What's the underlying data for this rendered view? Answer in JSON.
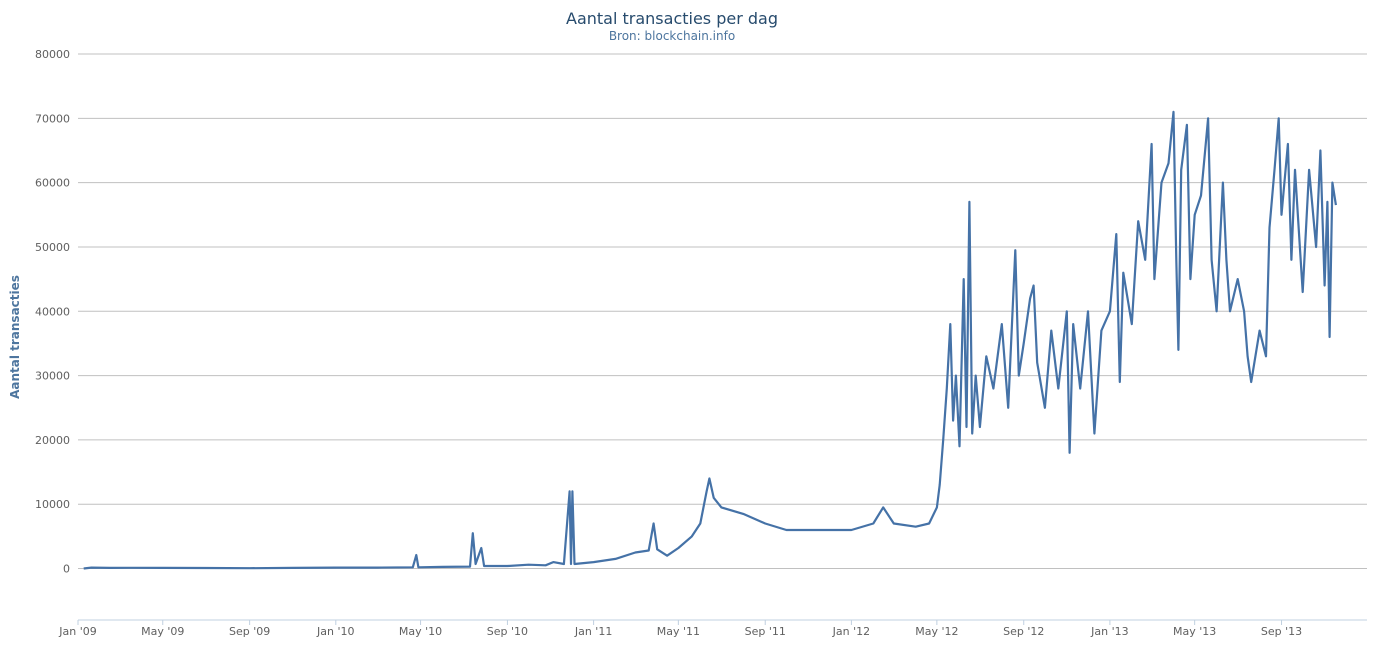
{
  "chart_data": {
    "type": "line",
    "title": "Aantal transacties per dag",
    "subtitle": "Bron: blockchain.info",
    "xlabel": "",
    "ylabel": "Aantal transacties",
    "ylim": [
      -8000,
      80000
    ],
    "yticks": [
      0,
      10000,
      20000,
      30000,
      40000,
      50000,
      60000,
      70000,
      80000
    ],
    "xlim": [
      "2009-01-01",
      "2013-12-31"
    ],
    "xticks": [
      {
        "date": "2009-01-01",
        "label": "Jan '09"
      },
      {
        "date": "2009-05-01",
        "label": "May '09"
      },
      {
        "date": "2009-09-01",
        "label": "Sep '09"
      },
      {
        "date": "2010-01-01",
        "label": "Jan '10"
      },
      {
        "date": "2010-05-01",
        "label": "May '10"
      },
      {
        "date": "2010-09-01",
        "label": "Sep '10"
      },
      {
        "date": "2011-01-01",
        "label": "Jan '11"
      },
      {
        "date": "2011-05-01",
        "label": "May '11"
      },
      {
        "date": "2011-09-01",
        "label": "Sep '11"
      },
      {
        "date": "2012-01-01",
        "label": "Jan '12"
      },
      {
        "date": "2012-05-01",
        "label": "May '12"
      },
      {
        "date": "2012-09-01",
        "label": "Sep '12"
      },
      {
        "date": "2013-01-01",
        "label": "Jan '13"
      },
      {
        "date": "2013-05-01",
        "label": "May '13"
      },
      {
        "date": "2013-09-01",
        "label": "Sep '13"
      }
    ],
    "grid": true,
    "legend": "none",
    "color": "#4572a7",
    "series": [
      {
        "values": [
          [
            "2009-01-09",
            0
          ],
          [
            "2009-01-20",
            150
          ],
          [
            "2009-02-15",
            100
          ],
          [
            "2009-03-20",
            120
          ],
          [
            "2009-05-01",
            100
          ],
          [
            "2009-07-01",
            80
          ],
          [
            "2009-09-01",
            60
          ],
          [
            "2009-11-01",
            100
          ],
          [
            "2010-01-01",
            150
          ],
          [
            "2010-03-01",
            150
          ],
          [
            "2010-04-20",
            200
          ],
          [
            "2010-04-25",
            2100
          ],
          [
            "2010-04-28",
            200
          ],
          [
            "2010-06-01",
            250
          ],
          [
            "2010-07-10",
            300
          ],
          [
            "2010-07-14",
            5500
          ],
          [
            "2010-07-18",
            700
          ],
          [
            "2010-07-26",
            3200
          ],
          [
            "2010-07-30",
            400
          ],
          [
            "2010-09-01",
            400
          ],
          [
            "2010-10-01",
            600
          ],
          [
            "2010-10-25",
            500
          ],
          [
            "2010-11-05",
            1000
          ],
          [
            "2010-11-20",
            700
          ],
          [
            "2010-11-28",
            12000
          ],
          [
            "2010-11-30",
            700
          ],
          [
            "2010-12-02",
            12000
          ],
          [
            "2010-12-05",
            700
          ],
          [
            "2011-01-01",
            1000
          ],
          [
            "2011-02-01",
            1500
          ],
          [
            "2011-03-01",
            2500
          ],
          [
            "2011-03-20",
            2800
          ],
          [
            "2011-03-27",
            7000
          ],
          [
            "2011-04-01",
            3000
          ],
          [
            "2011-04-15",
            2000
          ],
          [
            "2011-05-01",
            3200
          ],
          [
            "2011-05-20",
            5000
          ],
          [
            "2011-06-01",
            7000
          ],
          [
            "2011-06-10",
            12000
          ],
          [
            "2011-06-14",
            14000
          ],
          [
            "2011-06-20",
            11000
          ],
          [
            "2011-07-01",
            9500
          ],
          [
            "2011-08-01",
            8500
          ],
          [
            "2011-09-01",
            7000
          ],
          [
            "2011-10-01",
            6000
          ],
          [
            "2011-11-01",
            6000
          ],
          [
            "2011-12-01",
            6000
          ],
          [
            "2012-01-01",
            6000
          ],
          [
            "2012-02-01",
            7000
          ],
          [
            "2012-02-15",
            9500
          ],
          [
            "2012-03-01",
            7000
          ],
          [
            "2012-04-01",
            6500
          ],
          [
            "2012-04-20",
            7000
          ],
          [
            "2012-05-01",
            9500
          ],
          [
            "2012-05-05",
            13000
          ],
          [
            "2012-05-10",
            20000
          ],
          [
            "2012-05-15",
            28000
          ],
          [
            "2012-05-20",
            38000
          ],
          [
            "2012-05-24",
            23000
          ],
          [
            "2012-05-28",
            30000
          ],
          [
            "2012-06-02",
            19000
          ],
          [
            "2012-06-08",
            45000
          ],
          [
            "2012-06-12",
            22000
          ],
          [
            "2012-06-16",
            57000
          ],
          [
            "2012-06-20",
            21000
          ],
          [
            "2012-06-25",
            30000
          ],
          [
            "2012-07-01",
            22000
          ],
          [
            "2012-07-10",
            33000
          ],
          [
            "2012-07-20",
            28000
          ],
          [
            "2012-08-01",
            38000
          ],
          [
            "2012-08-10",
            25000
          ],
          [
            "2012-08-20",
            49500
          ],
          [
            "2012-08-25",
            30000
          ],
          [
            "2012-09-01",
            35000
          ],
          [
            "2012-09-10",
            42000
          ],
          [
            "2012-09-15",
            44000
          ],
          [
            "2012-09-20",
            32000
          ],
          [
            "2012-10-01",
            25000
          ],
          [
            "2012-10-10",
            37000
          ],
          [
            "2012-10-20",
            28000
          ],
          [
            "2012-11-01",
            40000
          ],
          [
            "2012-11-05",
            18000
          ],
          [
            "2012-11-10",
            38000
          ],
          [
            "2012-11-20",
            28000
          ],
          [
            "2012-12-01",
            40000
          ],
          [
            "2012-12-10",
            21000
          ],
          [
            "2012-12-20",
            37000
          ],
          [
            "2013-01-01",
            40000
          ],
          [
            "2013-01-10",
            52000
          ],
          [
            "2013-01-15",
            29000
          ],
          [
            "2013-01-20",
            46000
          ],
          [
            "2013-02-01",
            38000
          ],
          [
            "2013-02-10",
            54000
          ],
          [
            "2013-02-20",
            48000
          ],
          [
            "2013-03-01",
            66000
          ],
          [
            "2013-03-05",
            45000
          ],
          [
            "2013-03-15",
            60000
          ],
          [
            "2013-03-25",
            63000
          ],
          [
            "2013-04-01",
            71000
          ],
          [
            "2013-04-05",
            48000
          ],
          [
            "2013-04-08",
            34000
          ],
          [
            "2013-04-12",
            62000
          ],
          [
            "2013-04-20",
            69000
          ],
          [
            "2013-04-25",
            45000
          ],
          [
            "2013-05-01",
            55000
          ],
          [
            "2013-05-10",
            58000
          ],
          [
            "2013-05-20",
            70000
          ],
          [
            "2013-05-25",
            48000
          ],
          [
            "2013-06-01",
            40000
          ],
          [
            "2013-06-10",
            60000
          ],
          [
            "2013-06-15",
            48000
          ],
          [
            "2013-06-20",
            40000
          ],
          [
            "2013-07-01",
            45000
          ],
          [
            "2013-07-10",
            40000
          ],
          [
            "2013-07-15",
            33000
          ],
          [
            "2013-07-20",
            29000
          ],
          [
            "2013-08-01",
            37000
          ],
          [
            "2013-08-10",
            33000
          ],
          [
            "2013-08-15",
            53000
          ],
          [
            "2013-08-22",
            62000
          ],
          [
            "2013-08-28",
            70000
          ],
          [
            "2013-09-01",
            55000
          ],
          [
            "2013-09-10",
            66000
          ],
          [
            "2013-09-15",
            48000
          ],
          [
            "2013-09-20",
            62000
          ],
          [
            "2013-10-01",
            43000
          ],
          [
            "2013-10-10",
            62000
          ],
          [
            "2013-10-20",
            50000
          ],
          [
            "2013-10-26",
            65000
          ],
          [
            "2013-11-01",
            44000
          ],
          [
            "2013-11-05",
            57000
          ],
          [
            "2013-11-08",
            36000
          ],
          [
            "2013-11-12",
            60000
          ],
          [
            "2013-11-17",
            56500
          ]
        ]
      }
    ]
  }
}
